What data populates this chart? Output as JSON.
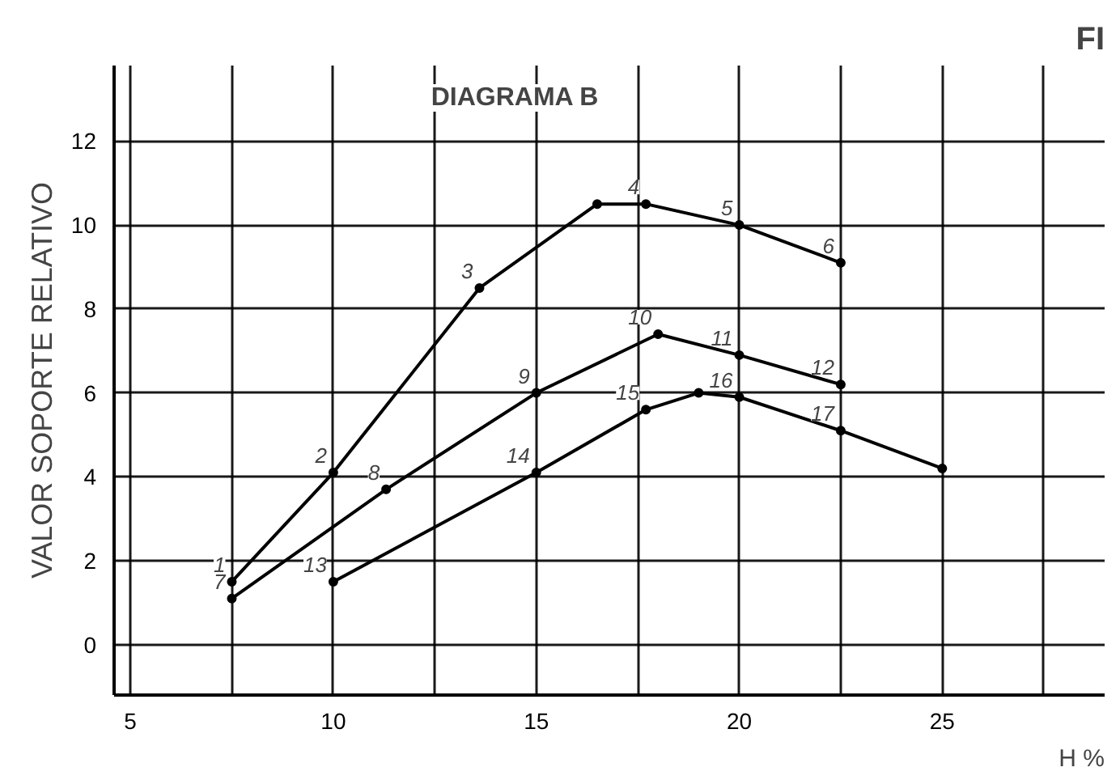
{
  "chart_data": {
    "type": "line",
    "title": "DIAGRAMA B",
    "xlabel": "H %",
    "ylabel": "VALOR SOPORTE RELATIVO",
    "xlim": [
      4.6,
      29
    ],
    "ylim": [
      -1.2,
      13.8
    ],
    "xticks": [
      5,
      {
        "value": 7.5,
        "label": null
      },
      10,
      {
        "value": 12.5,
        "label": null
      },
      15,
      {
        "value": 17.5,
        "label": null
      },
      20,
      {
        "value": 22.5,
        "label": null
      },
      25,
      {
        "value": 27.5,
        "label": null
      }
    ],
    "yticks": [
      0,
      2,
      4,
      6,
      8,
      10,
      12
    ],
    "grid": true,
    "marker": "circle",
    "line_style": "solid",
    "series": [
      {
        "color": "#000000",
        "x": [
          7.5,
          10,
          13.6,
          16.5,
          17.7,
          20,
          22.5
        ],
        "values": [
          1.5,
          4.1,
          8.5,
          10.5,
          10.5,
          10.0,
          9.1
        ]
      },
      {
        "color": "#000000",
        "x": [
          7.5,
          11.3,
          15,
          18,
          20,
          22.5
        ],
        "values": [
          1.1,
          3.7,
          6.0,
          7.4,
          6.9,
          6.2
        ]
      },
      {
        "color": "#000000",
        "x": [
          10,
          15,
          17.7,
          19,
          20,
          22.5,
          25
        ],
        "values": [
          1.5,
          4.1,
          5.6,
          6.0,
          5.9,
          5.1,
          4.2
        ]
      }
    ],
    "annotations": [
      {
        "text": "1",
        "x": 7.5,
        "y": 1.5
      },
      {
        "text": "2",
        "x": 10,
        "y": 4.1
      },
      {
        "text": "3",
        "x": 13.6,
        "y": 8.5
      },
      {
        "text": "4",
        "x": 17.7,
        "y": 10.5
      },
      {
        "text": "5",
        "x": 20,
        "y": 10.0
      },
      {
        "text": "6",
        "x": 22.5,
        "y": 9.1
      },
      {
        "text": "7",
        "x": 7.5,
        "y": 1.1
      },
      {
        "text": "8",
        "x": 11.3,
        "y": 3.7
      },
      {
        "text": "9",
        "x": 15,
        "y": 6.0
      },
      {
        "text": "10",
        "x": 18,
        "y": 7.4
      },
      {
        "text": "11",
        "x": 20,
        "y": 6.9
      },
      {
        "text": "12",
        "x": 22.5,
        "y": 6.2
      },
      {
        "text": "13",
        "x": 10,
        "y": 1.5
      },
      {
        "text": "14",
        "x": 15,
        "y": 4.1
      },
      {
        "text": "15",
        "x": 17.7,
        "y": 5.6
      },
      {
        "text": "16",
        "x": 20,
        "y": 5.9
      },
      {
        "text": "17",
        "x": 22.5,
        "y": 5.1
      },
      "FI"
    ]
  }
}
